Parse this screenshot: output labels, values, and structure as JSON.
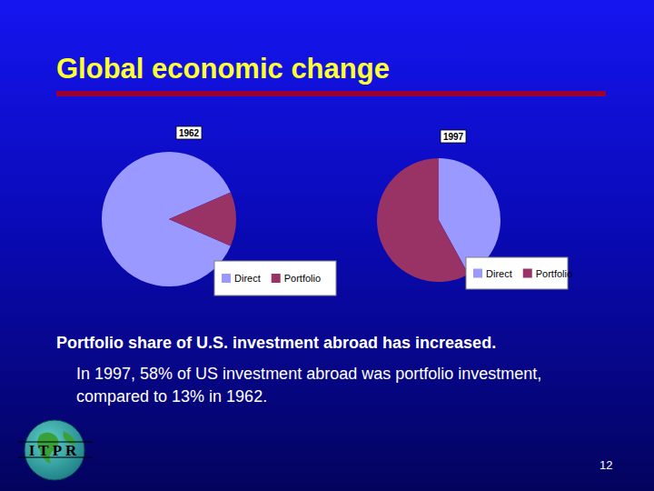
{
  "slide": {
    "title": "Global economic change",
    "heading": "Portfolio share of U.S. investment abroad has increased.",
    "body": "In 1997, 58% of US investment abroad was portfolio investment, compared to 13% in 1962.",
    "logo_text": "ITPR",
    "page_number": 12
  },
  "chart_data": [
    {
      "type": "pie",
      "title": "1962",
      "categories": [
        "Direct",
        "Portfolio"
      ],
      "values": [
        87,
        13
      ],
      "colors": [
        "#9999ff",
        "#993366"
      ],
      "legend": "bottom-right"
    },
    {
      "type": "pie",
      "title": "1997",
      "categories": [
        "Direct",
        "Portfolio"
      ],
      "values": [
        42,
        58
      ],
      "colors": [
        "#9999ff",
        "#993366"
      ],
      "legend": "bottom-right"
    }
  ]
}
